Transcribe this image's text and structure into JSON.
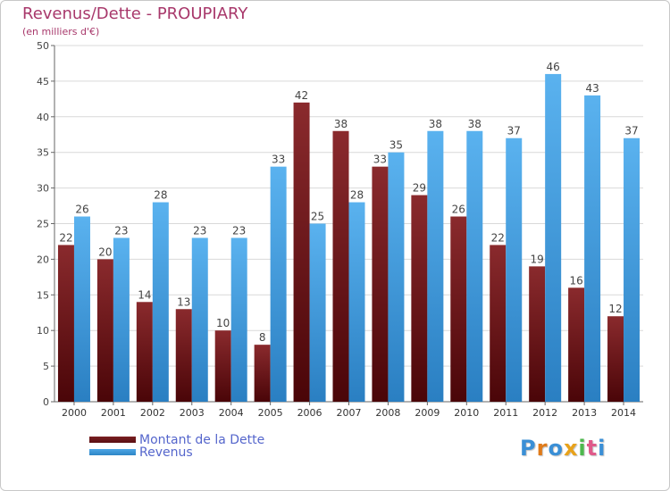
{
  "header": {
    "title": "Revenus/Dette - PROUPIARY",
    "subtitle": "(en milliers d'€)"
  },
  "colors": {
    "dette": "#7a1f22",
    "dette_dark": "#5a0f12",
    "revenus": "#4da6e6",
    "revenus_dark": "#2d86c6",
    "title": "#a8386b",
    "legend_text": "#5566cc"
  },
  "legend": {
    "dette_label": "Montant de la Dette",
    "revenus_label": "Revenus"
  },
  "logo": {
    "letters": [
      "P",
      "r",
      "o",
      "x",
      "i",
      "t",
      "i"
    ],
    "colors": [
      "#3a8fd6",
      "#e07b1a",
      "#3a8fd6",
      "#e8a21a",
      "#4db84d",
      "#e05a8a",
      "#3a8fd6"
    ]
  },
  "chart_data": {
    "type": "bar",
    "title": "Revenus/Dette - PROUPIARY",
    "ylabel": "(en milliers d'€)",
    "xlabel": "",
    "categories": [
      "2000",
      "2001",
      "2002",
      "2003",
      "2004",
      "2005",
      "2006",
      "2007",
      "2008",
      "2009",
      "2010",
      "2011",
      "2012",
      "2013",
      "2014"
    ],
    "series": [
      {
        "name": "Montant de la Dette",
        "values": [
          22,
          20,
          14,
          13,
          10,
          8,
          42,
          38,
          33,
          29,
          26,
          22,
          19,
          16,
          12
        ]
      },
      {
        "name": "Revenus",
        "values": [
          26,
          23,
          28,
          23,
          23,
          33,
          25,
          28,
          35,
          38,
          38,
          37,
          46,
          43,
          37
        ]
      }
    ],
    "ylim": [
      0,
      50
    ],
    "yticks": [
      0,
      5,
      10,
      15,
      20,
      25,
      30,
      35,
      40,
      45,
      50
    ],
    "grid": true,
    "legend_position": "bottom-left"
  }
}
